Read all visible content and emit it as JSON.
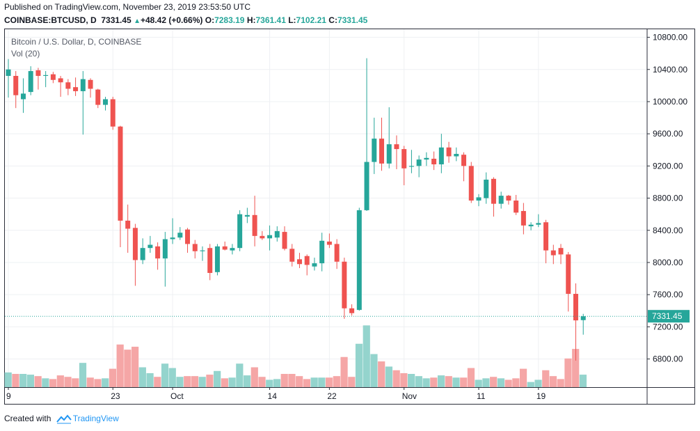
{
  "header": {
    "published": "Published on TradingView.com, November 23, 2019 23:53:50 UTC",
    "symbol": "COINBASE:BTCUSD, D",
    "last": "7331.45",
    "change": "+48.42 (+0.66%)",
    "open_label": "O:",
    "open": "7283.19",
    "high_label": "H:",
    "high": "7361.41",
    "low_label": "L:",
    "low": "7102.21",
    "close_label": "C:",
    "close": "7331.45"
  },
  "legend": {
    "title": "Bitcoin / U.S. Dollar, D, COINBASE",
    "volume": "Vol (20)"
  },
  "footer": {
    "created_with": "Created with",
    "brand": "TradingView"
  },
  "colors": {
    "up": "#26a69a",
    "down": "#ef5350",
    "up_vol": "#94d4cd",
    "down_vol": "#f5a6a6",
    "price_line": "#26a69a",
    "grid": "#eef0f3"
  },
  "chart_data": {
    "type": "candlestick",
    "title": "Bitcoin / U.S. Dollar, D, COINBASE",
    "ylim": [
      6450,
      10900
    ],
    "y_ticks": [
      6800,
      7200,
      7600,
      8000,
      8400,
      8800,
      9200,
      9600,
      10000,
      10400,
      10800
    ],
    "y_tick_labels": [
      "6800.00",
      "7200.00",
      "7600.00",
      "8000.00",
      "8400.00",
      "8800.00",
      "9200.00",
      "9600.00",
      "10000.00",
      "10400.00",
      "10800.00"
    ],
    "x_ticks": [
      {
        "label": "9",
        "index": 0
      },
      {
        "label": "23",
        "index": 14
      },
      {
        "label": "Oct",
        "index": 22
      },
      {
        "label": "14",
        "index": 35
      },
      {
        "label": "22",
        "index": 43
      },
      {
        "label": "Nov",
        "index": 53
      },
      {
        "label": "11",
        "index": 63
      },
      {
        "label": "19",
        "index": 71
      }
    ],
    "current_price": 7331.45,
    "current_price_label": "7331.45",
    "volume_max": 9,
    "candles": [
      {
        "o": 10320,
        "h": 10530,
        "l": 10050,
        "c": 10400,
        "v": 2.0
      },
      {
        "o": 10320,
        "h": 10380,
        "l": 9920,
        "c": 10080,
        "v": 1.8
      },
      {
        "o": 10030,
        "h": 10290,
        "l": 9860,
        "c": 10100,
        "v": 1.8
      },
      {
        "o": 10120,
        "h": 10440,
        "l": 10080,
        "c": 10380,
        "v": 1.7
      },
      {
        "o": 10390,
        "h": 10420,
        "l": 10150,
        "c": 10320,
        "v": 1.5
      },
      {
        "o": 10320,
        "h": 10380,
        "l": 10180,
        "c": 10330,
        "v": 1.2
      },
      {
        "o": 10340,
        "h": 10370,
        "l": 10230,
        "c": 10270,
        "v": 1.1
      },
      {
        "o": 10290,
        "h": 10320,
        "l": 10060,
        "c": 10240,
        "v": 1.6
      },
      {
        "o": 10240,
        "h": 10280,
        "l": 10080,
        "c": 10160,
        "v": 1.4
      },
      {
        "o": 10180,
        "h": 10300,
        "l": 10070,
        "c": 10130,
        "v": 1.2
      },
      {
        "o": 10130,
        "h": 10380,
        "l": 9590,
        "c": 10280,
        "v": 3.3
      },
      {
        "o": 10270,
        "h": 10290,
        "l": 10050,
        "c": 10160,
        "v": 1.3
      },
      {
        "o": 10150,
        "h": 10160,
        "l": 9920,
        "c": 9960,
        "v": 1.1
      },
      {
        "o": 9960,
        "h": 10060,
        "l": 9890,
        "c": 10030,
        "v": 1.2
      },
      {
        "o": 10030,
        "h": 10060,
        "l": 9650,
        "c": 9690,
        "v": 2.5
      },
      {
        "o": 9690,
        "h": 9700,
        "l": 8190,
        "c": 8520,
        "v": 5.8
      },
      {
        "o": 8520,
        "h": 8720,
        "l": 8120,
        "c": 8420,
        "v": 5.1
      },
      {
        "o": 8430,
        "h": 8480,
        "l": 7710,
        "c": 8030,
        "v": 5.5
      },
      {
        "o": 8030,
        "h": 8300,
        "l": 7980,
        "c": 8180,
        "v": 2.7
      },
      {
        "o": 8180,
        "h": 8330,
        "l": 8120,
        "c": 8220,
        "v": 1.9
      },
      {
        "o": 8200,
        "h": 8250,
        "l": 7910,
        "c": 8050,
        "v": 1.4
      },
      {
        "o": 8050,
        "h": 8380,
        "l": 7700,
        "c": 8290,
        "v": 3.2
      },
      {
        "o": 8290,
        "h": 8550,
        "l": 8230,
        "c": 8310,
        "v": 2.6
      },
      {
        "o": 8310,
        "h": 8440,
        "l": 8280,
        "c": 8370,
        "v": 1.4
      },
      {
        "o": 8410,
        "h": 8430,
        "l": 8120,
        "c": 8230,
        "v": 1.5
      },
      {
        "o": 8230,
        "h": 8280,
        "l": 8050,
        "c": 8140,
        "v": 1.5
      },
      {
        "o": 8140,
        "h": 8200,
        "l": 8020,
        "c": 8150,
        "v": 1.4
      },
      {
        "o": 8180,
        "h": 8230,
        "l": 7780,
        "c": 7870,
        "v": 1.7
      },
      {
        "o": 7880,
        "h": 8230,
        "l": 7840,
        "c": 8200,
        "v": 2.2
      },
      {
        "o": 8200,
        "h": 8260,
        "l": 8150,
        "c": 8160,
        "v": 1.2
      },
      {
        "o": 8150,
        "h": 8230,
        "l": 8100,
        "c": 8180,
        "v": 1.3
      },
      {
        "o": 8180,
        "h": 8650,
        "l": 8140,
        "c": 8600,
        "v": 3.2
      },
      {
        "o": 8570,
        "h": 8680,
        "l": 8490,
        "c": 8590,
        "v": 1.6
      },
      {
        "o": 8590,
        "h": 8830,
        "l": 8200,
        "c": 8330,
        "v": 2.7
      },
      {
        "o": 8330,
        "h": 8390,
        "l": 8280,
        "c": 8300,
        "v": 1.4
      },
      {
        "o": 8300,
        "h": 8460,
        "l": 8150,
        "c": 8340,
        "v": 1.0
      },
      {
        "o": 8310,
        "h": 8450,
        "l": 8260,
        "c": 8390,
        "v": 1.1
      },
      {
        "o": 8380,
        "h": 8450,
        "l": 8150,
        "c": 8170,
        "v": 1.8
      },
      {
        "o": 8170,
        "h": 8230,
        "l": 7950,
        "c": 8010,
        "v": 1.8
      },
      {
        "o": 8040,
        "h": 8120,
        "l": 7930,
        "c": 7980,
        "v": 1.5
      },
      {
        "o": 8080,
        "h": 8100,
        "l": 7840,
        "c": 7970,
        "v": 1.1
      },
      {
        "o": 7950,
        "h": 8060,
        "l": 7900,
        "c": 7990,
        "v": 1.3
      },
      {
        "o": 7990,
        "h": 8370,
        "l": 7890,
        "c": 8270,
        "v": 1.3
      },
      {
        "o": 8260,
        "h": 8360,
        "l": 8180,
        "c": 8220,
        "v": 1.3
      },
      {
        "o": 8230,
        "h": 8290,
        "l": 7920,
        "c": 8010,
        "v": 1.5
      },
      {
        "o": 8010,
        "h": 8060,
        "l": 7300,
        "c": 7430,
        "v": 4.1
      },
      {
        "o": 7430,
        "h": 7480,
        "l": 7340,
        "c": 7370,
        "v": 1.4
      },
      {
        "o": 7410,
        "h": 8680,
        "l": 7400,
        "c": 8650,
        "v": 5.9
      },
      {
        "o": 8650,
        "h": 10540,
        "l": 8640,
        "c": 9250,
        "v": 8.4
      },
      {
        "o": 9250,
        "h": 9800,
        "l": 9100,
        "c": 9540,
        "v": 4.5
      },
      {
        "o": 9540,
        "h": 9800,
        "l": 9140,
        "c": 9230,
        "v": 3.5
      },
      {
        "o": 9230,
        "h": 9930,
        "l": 9170,
        "c": 9470,
        "v": 2.8
      },
      {
        "o": 9470,
        "h": 9580,
        "l": 9160,
        "c": 9410,
        "v": 2.3
      },
      {
        "o": 9410,
        "h": 9450,
        "l": 8960,
        "c": 9170,
        "v": 1.9
      },
      {
        "o": 9190,
        "h": 9400,
        "l": 9110,
        "c": 9200,
        "v": 1.8
      },
      {
        "o": 9200,
        "h": 9330,
        "l": 9060,
        "c": 9280,
        "v": 1.5
      },
      {
        "o": 9280,
        "h": 9370,
        "l": 9200,
        "c": 9300,
        "v": 1.2
      },
      {
        "o": 9290,
        "h": 9380,
        "l": 9150,
        "c": 9220,
        "v": 1.3
      },
      {
        "o": 9220,
        "h": 9600,
        "l": 9110,
        "c": 9430,
        "v": 1.6
      },
      {
        "o": 9430,
        "h": 9500,
        "l": 9240,
        "c": 9320,
        "v": 1.5
      },
      {
        "o": 9320,
        "h": 9430,
        "l": 9260,
        "c": 9350,
        "v": 1.3
      },
      {
        "o": 9340,
        "h": 9370,
        "l": 9010,
        "c": 9200,
        "v": 1.3
      },
      {
        "o": 9200,
        "h": 9250,
        "l": 8740,
        "c": 8770,
        "v": 2.6
      },
      {
        "o": 8770,
        "h": 8850,
        "l": 8700,
        "c": 8810,
        "v": 1.0
      },
      {
        "o": 8800,
        "h": 9120,
        "l": 8730,
        "c": 9030,
        "v": 1.2
      },
      {
        "o": 9040,
        "h": 9060,
        "l": 8570,
        "c": 8730,
        "v": 1.4
      },
      {
        "o": 8730,
        "h": 8880,
        "l": 8670,
        "c": 8830,
        "v": 1.2
      },
      {
        "o": 8830,
        "h": 8840,
        "l": 8720,
        "c": 8770,
        "v": 1.0
      },
      {
        "o": 8770,
        "h": 8840,
        "l": 8590,
        "c": 8620,
        "v": 1.2
      },
      {
        "o": 8640,
        "h": 8740,
        "l": 8350,
        "c": 8460,
        "v": 2.5
      },
      {
        "o": 8450,
        "h": 8500,
        "l": 8400,
        "c": 8470,
        "v": 0.7
      },
      {
        "o": 8470,
        "h": 8600,
        "l": 8440,
        "c": 8490,
        "v": 1.0
      },
      {
        "o": 8500,
        "h": 8530,
        "l": 7990,
        "c": 8150,
        "v": 2.3
      },
      {
        "o": 8150,
        "h": 8220,
        "l": 7980,
        "c": 8090,
        "v": 1.5
      },
      {
        "o": 8180,
        "h": 8230,
        "l": 7980,
        "c": 8100,
        "v": 1.1
      },
      {
        "o": 8100,
        "h": 8130,
        "l": 7390,
        "c": 7610,
        "v": 3.9
      },
      {
        "o": 7610,
        "h": 7740,
        "l": 6780,
        "c": 7280,
        "v": 5.2
      },
      {
        "o": 7283.19,
        "h": 7361.41,
        "l": 7102.21,
        "c": 7331.45,
        "v": 1.7
      }
    ]
  }
}
